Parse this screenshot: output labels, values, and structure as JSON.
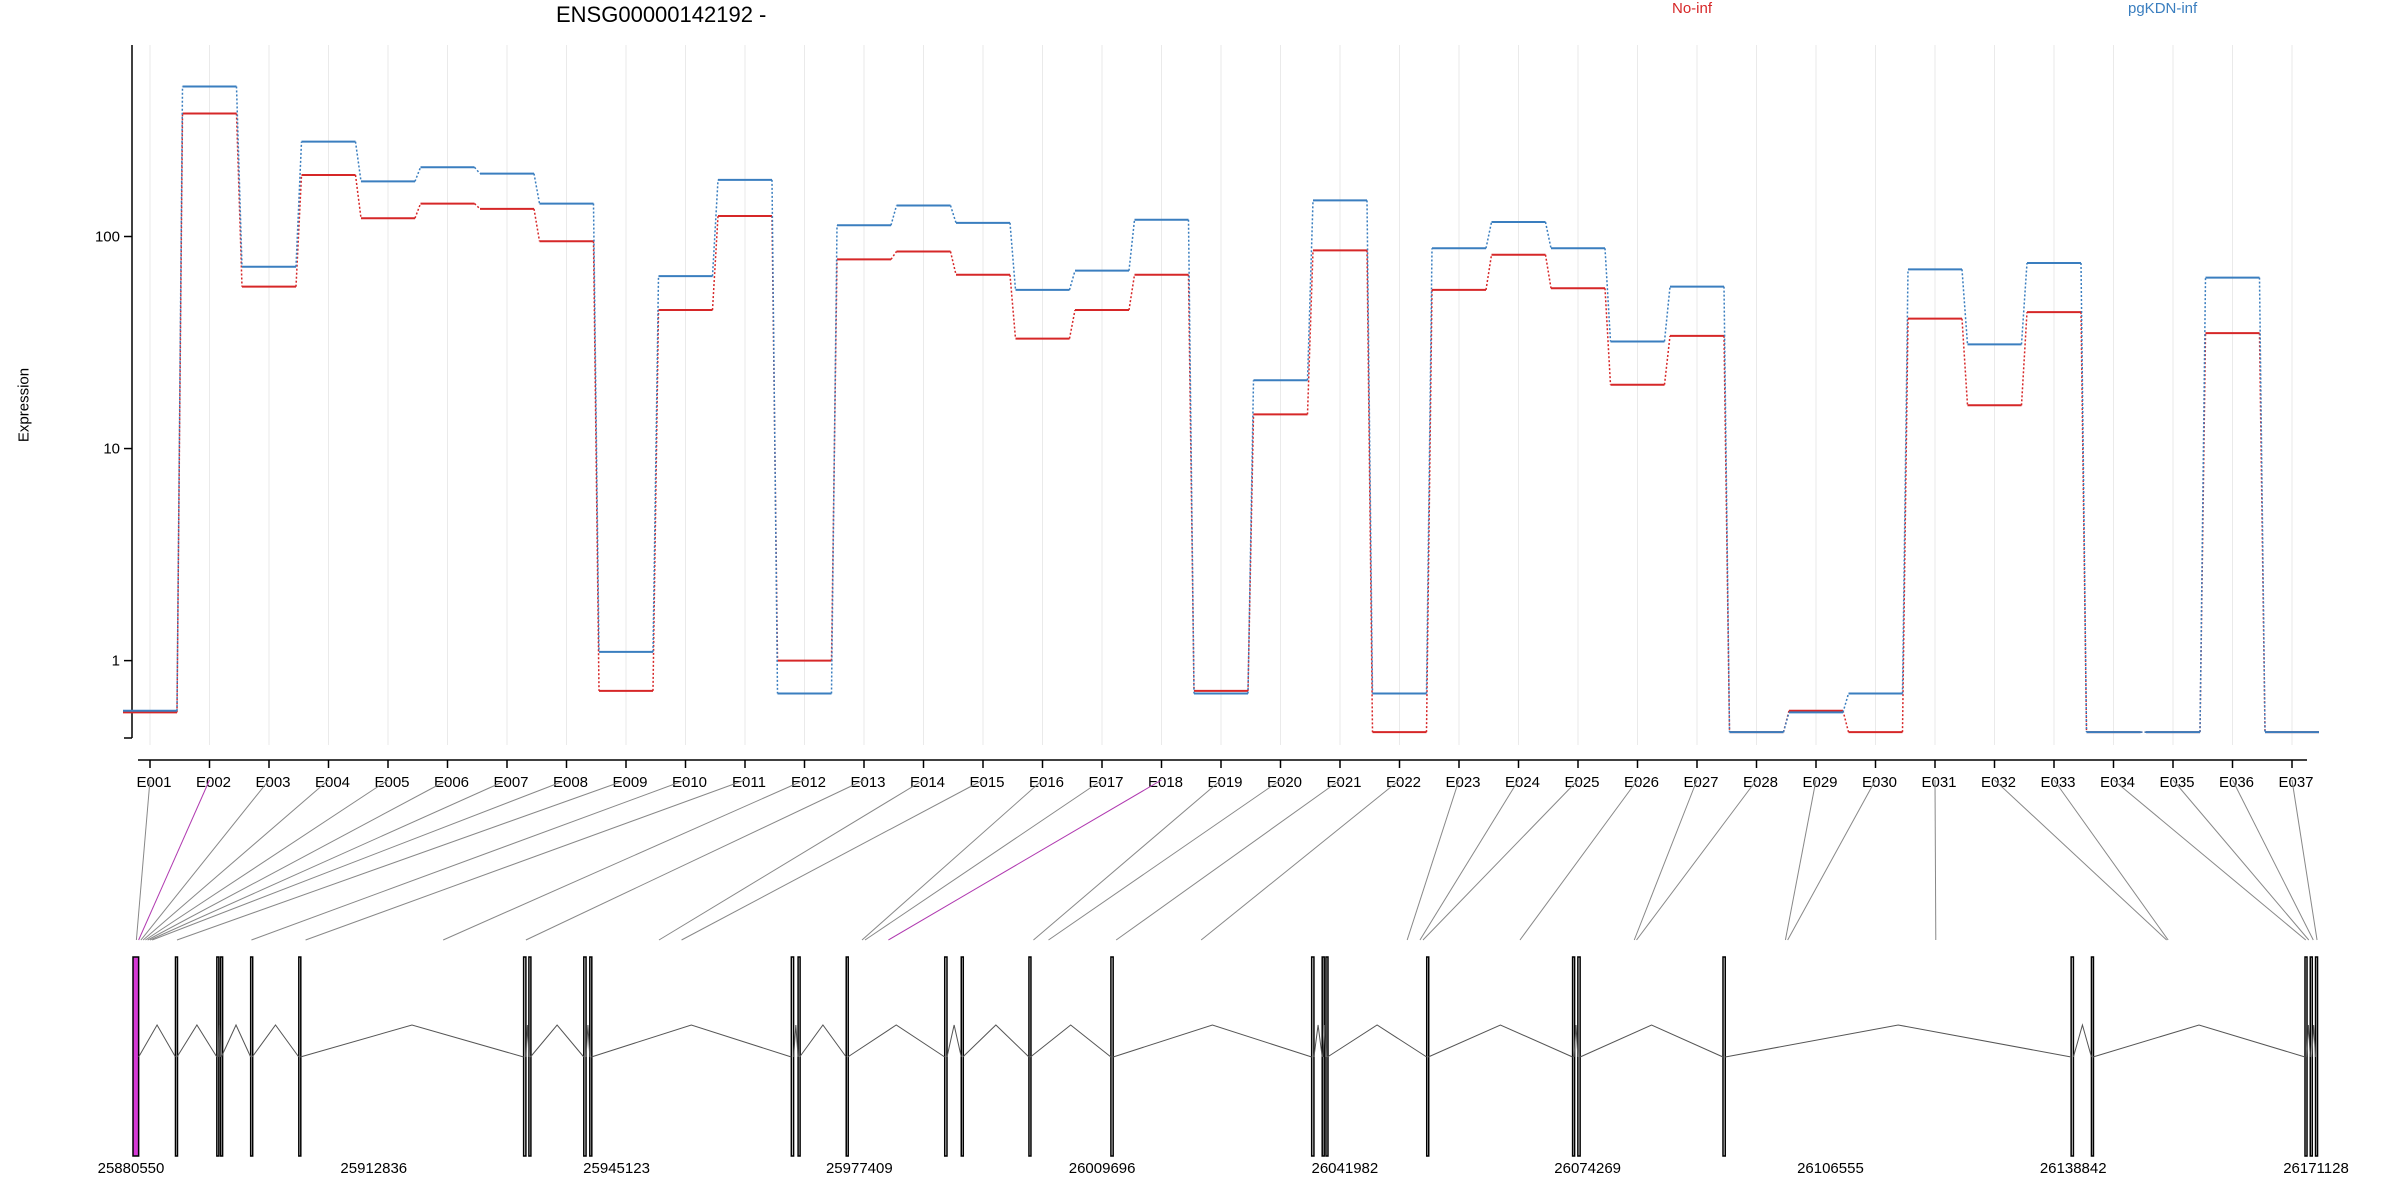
{
  "chart_data": {
    "type": "line",
    "title": "ENSG00000142192 -",
    "ylabel": "Expression",
    "yscale": "log",
    "ylim": [
      0.4,
      800
    ],
    "yticks": [
      1,
      10,
      100
    ],
    "ytick_labels": [
      "1",
      "10",
      "100"
    ],
    "categories": [
      "E001",
      "E002",
      "E003",
      "E004",
      "E005",
      "E006",
      "E007",
      "E008",
      "E009",
      "E010",
      "E011",
      "E012",
      "E013",
      "E014",
      "E015",
      "E016",
      "E017",
      "E018",
      "E019",
      "E020",
      "E021",
      "E022",
      "E023",
      "E024",
      "E025",
      "E026",
      "E027",
      "E028",
      "E029",
      "E030",
      "E031",
      "E032",
      "E033",
      "E034",
      "E035",
      "E036",
      "E037"
    ],
    "series": [
      {
        "name": "No-inf",
        "color": "#d62728",
        "values": [
          0.57,
          380,
          58,
          195,
          122,
          143,
          135,
          95,
          0.72,
          45,
          125,
          1.0,
          78,
          85,
          66,
          33,
          45,
          66,
          0.72,
          14.5,
          86,
          0.46,
          56,
          82,
          57,
          20,
          34,
          0.46,
          0.58,
          0.46,
          41,
          16,
          44,
          0.46,
          0.46,
          35,
          0.46
        ]
      },
      {
        "name": "pgKDN-inf",
        "color": "#3a7ebf",
        "values": [
          0.58,
          510,
          72,
          280,
          182,
          212,
          198,
          143,
          1.1,
          65,
          185,
          0.7,
          113,
          140,
          116,
          56,
          69,
          120,
          0.7,
          21,
          148,
          0.7,
          88,
          117,
          88,
          32,
          58,
          0.46,
          0.57,
          0.7,
          70,
          31,
          75,
          0.46,
          0.46,
          64,
          0.46
        ]
      }
    ],
    "genomic_axis": {
      "min": 25880550,
      "max": 26171128,
      "tick_labels": [
        "25880550",
        "25912836",
        "25945123",
        "25977409",
        "26009696",
        "26041982",
        "26074269",
        "26106555",
        "26138842",
        "26171128"
      ]
    }
  }
}
